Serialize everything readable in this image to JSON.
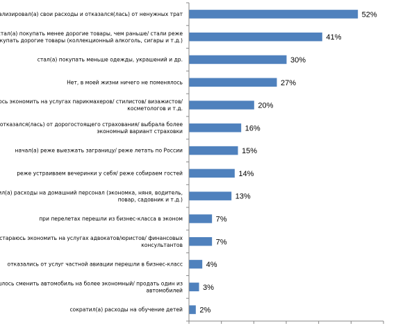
{
  "chart_data": {
    "type": "bar",
    "orientation": "horizontal",
    "categories": [
      [
        "проанализировал(а) свои расходы и отказался(лась) от ненужных трат"
      ],
      [
        "стал(а) покупать менее дорогие товары, чем раньше/ стали реже",
        "покупать дорогие товары (коллекционный алкоголь, сигары и т.д.)"
      ],
      [
        "стал(а) покупать меньше одежды, украшений и др."
      ],
      [
        "Нет, в моей жизни ничего не поменялось"
      ],
      [
        "стараюсь экономить на услугах парикмахеров/ стилистов/ визажистов/",
        "косметологов и т.д."
      ],
      [
        "отказался(лась) от дорогостоящего страхования/ выбрала более",
        "экономный вариант страховки"
      ],
      [
        "начал(а) реже выезжать заграницу/ реже летать по России"
      ],
      [
        "реже устраиваем вечеринки у себя/ реже собираем гостей"
      ],
      [
        "сократил(а) расходы на домашний персонал (экономка, няня, водитель,",
        "повар, садовник и т.д.)"
      ],
      [
        "при перелетах перешли из бизнес-класса в эконом"
      ],
      [
        "стараюсь экономить на услугах адвокатов/юристов/ финансовых",
        "консультантов"
      ],
      [
        "отказались от услуг частной авиации перешли в бизнес-класс"
      ],
      [
        "пришлось сменить автомобиль на более экономный/ продать один из",
        "автомобилей"
      ],
      [
        "сократил(а) расходы на обучение детей"
      ]
    ],
    "values": [
      52,
      41,
      30,
      27,
      20,
      16,
      15,
      14,
      13,
      7,
      7,
      4,
      3,
      2
    ],
    "value_labels": [
      "52%",
      "41%",
      "30%",
      "27%",
      "20%",
      "16%",
      "15%",
      "14%",
      "13%",
      "7%",
      "7%",
      "4%",
      "3%",
      "2%"
    ],
    "xlim": [
      0,
      60
    ],
    "grid": false,
    "colors": {
      "bar": "#4F81BD",
      "axis": "#868686"
    }
  }
}
